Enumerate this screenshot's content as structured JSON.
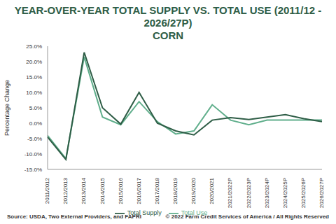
{
  "chart_data": {
    "type": "line",
    "title": "YEAR-OVER-YEAR TOTAL SUPPLY VS. TOTAL USE (2011/12 - 2026/27P)",
    "subtitle": "CORN",
    "y_label": "Percentage Change",
    "categories": [
      "2011/2012",
      "2012/2013",
      "2013/2014",
      "2014/2015",
      "2015/2016",
      "2016/2017",
      "2017/2018",
      "2018/2019",
      "2019/2020",
      "2020/2021",
      "2021/2022P",
      "2022/2023P",
      "2023/2024P",
      "2024/2025P",
      "2025/2026P",
      "2026/2027P"
    ],
    "series": [
      {
        "name": "Total Use",
        "color": "#5fae8b",
        "values": [
          -4.0,
          -11.5,
          21.5,
          2.0,
          -0.5,
          7.0,
          0.5,
          -3.5,
          -2.5,
          6.0,
          1.0,
          -0.5,
          1.0,
          1.0,
          1.0,
          1.0
        ]
      },
      {
        "name": "Total Supply",
        "color": "#2e5d46",
        "values": [
          -4.5,
          -11.8,
          23.0,
          5.0,
          -0.3,
          10.0,
          0.0,
          -2.5,
          -3.8,
          1.0,
          1.8,
          1.2,
          2.0,
          2.8,
          1.5,
          0.5
        ]
      }
    ],
    "ylim": [
      -15,
      25
    ],
    "yticks": [
      {
        "value": -15,
        "label": "-15.0%"
      },
      {
        "value": -10,
        "label": "-10.0%"
      },
      {
        "value": -5,
        "label": "-5.0%"
      },
      {
        "value": 0,
        "label": "0.0%"
      },
      {
        "value": 5,
        "label": "5.0%"
      },
      {
        "value": 10,
        "label": "10.0%"
      },
      {
        "value": 15,
        "label": "15.0%"
      },
      {
        "value": 20,
        "label": "20.0%"
      },
      {
        "value": 25,
        "label": "25.0%"
      }
    ],
    "grid": false,
    "legend": "bottom",
    "annotations": [
      "Source: USDA, Two External Providers, and FAPRI",
      "© 2022 Farm Credit Services of America / All Rights Reserved"
    ]
  }
}
